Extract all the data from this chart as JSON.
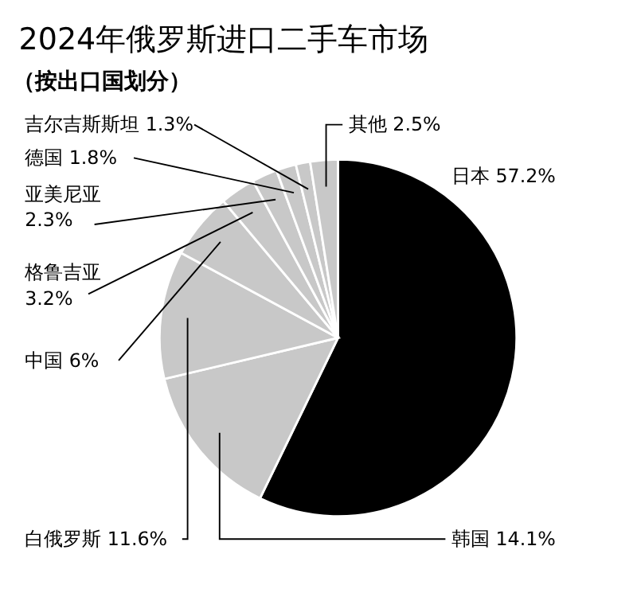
{
  "chart_data": {
    "type": "pie",
    "title": "2024年俄罗斯进口二手车市场",
    "subtitle": "（按出口国划分）",
    "categories": [
      "日本",
      "韩国",
      "白俄罗斯",
      "中国",
      "格鲁吉亚",
      "亚美尼亚",
      "德国",
      "吉尔吉斯斯坦",
      "其他"
    ],
    "values": [
      57.2,
      14.1,
      11.6,
      6,
      3.2,
      2.3,
      1.8,
      1.3,
      2.5
    ],
    "value_labels": [
      "57.2%",
      "14.1%",
      "11.6%",
      "6%",
      "3.2%",
      "2.3%",
      "1.8%",
      "1.3%",
      "2.5%"
    ],
    "colors": [
      "#000000",
      "#c8c8c8",
      "#c8c8c8",
      "#c8c8c8",
      "#c8c8c8",
      "#c8c8c8",
      "#c8c8c8",
      "#c8c8c8",
      "#c8c8c8"
    ]
  }
}
